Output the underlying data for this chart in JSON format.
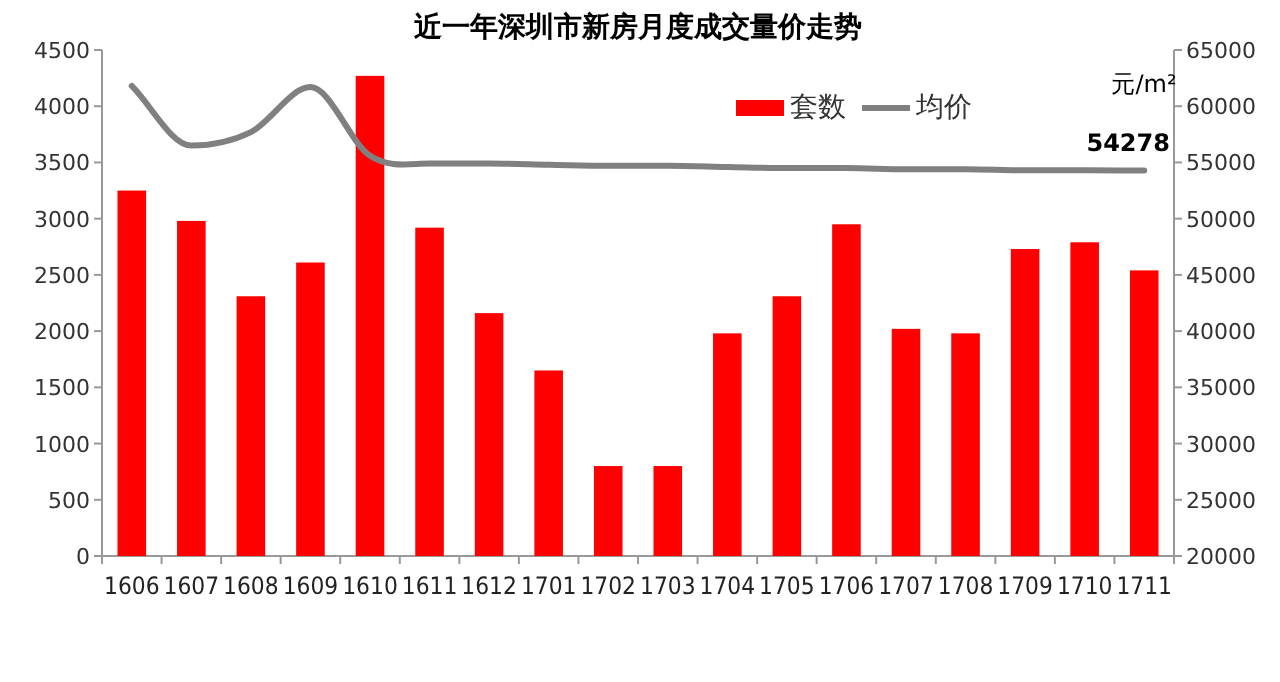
{
  "chart_data": {
    "type": "bar",
    "title": "近一年深圳市新房月度成交量价走势",
    "y2label": "元/m²",
    "categories": [
      "1606",
      "1607",
      "1608",
      "1609",
      "1610",
      "1611",
      "1612",
      "1701",
      "1702",
      "1703",
      "1704",
      "1705",
      "1706",
      "1707",
      "1708",
      "1709",
      "1710",
      "1711"
    ],
    "series": [
      {
        "name": "套数",
        "color": "#ff0000",
        "values": [
          3250,
          2980,
          2310,
          2610,
          4270,
          2920,
          2160,
          1650,
          800,
          800,
          1980,
          2310,
          2950,
          2020,
          1980,
          2730,
          2790,
          2540
        ]
      },
      {
        "name": "均价",
        "type": "line",
        "axis": "y2",
        "color": "#808080",
        "values": [
          61800,
          56500,
          57700,
          61700,
          55600,
          54900,
          54900,
          54800,
          54700,
          54700,
          54600,
          54500,
          54500,
          54400,
          54400,
          54300,
          54300,
          54278
        ],
        "value_labels": [
          null,
          null,
          null,
          null,
          null,
          null,
          null,
          null,
          null,
          null,
          null,
          null,
          null,
          null,
          null,
          null,
          null,
          "54278"
        ]
      }
    ],
    "ylim": [
      0,
      4500
    ],
    "yticks": [
      0,
      500,
      1000,
      1500,
      2000,
      2500,
      3000,
      3500,
      4000,
      4500
    ],
    "y2lim": [
      20000,
      65000
    ],
    "y2ticks": [
      20000,
      25000,
      30000,
      35000,
      40000,
      45000,
      50000,
      55000,
      60000,
      65000
    ],
    "legend": "top right",
    "grid": false,
    "marker": "none",
    "line_style": "solid"
  }
}
